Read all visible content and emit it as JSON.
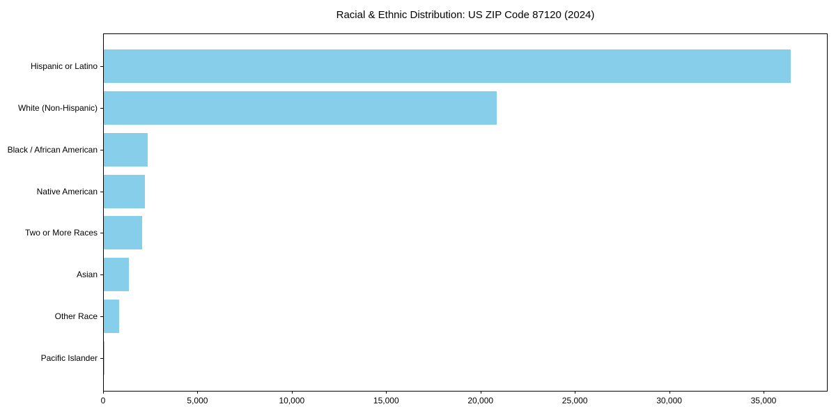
{
  "title": "Racial & Ethnic Distribution: US ZIP Code 87120 (2024)",
  "chart_data": {
    "type": "bar",
    "orientation": "horizontal",
    "title": "Racial & Ethnic Distribution: US ZIP Code 87120 (2024)",
    "xlabel": "",
    "ylabel": "",
    "categories": [
      "Hispanic or Latino",
      "White (Non-Hispanic)",
      "Black / African American",
      "Native American",
      "Two or More Races",
      "Asian",
      "Other Race",
      "Pacific Islander"
    ],
    "values": [
      36450,
      20860,
      2360,
      2210,
      2060,
      1360,
      850,
      40
    ],
    "xlim": [
      0,
      38360
    ],
    "xticks": [
      0,
      5000,
      10000,
      15000,
      20000,
      25000,
      30000,
      35000
    ],
    "bar_color": "#87CEEB",
    "grid": false,
    "legend": null,
    "sort_order": "descending"
  }
}
